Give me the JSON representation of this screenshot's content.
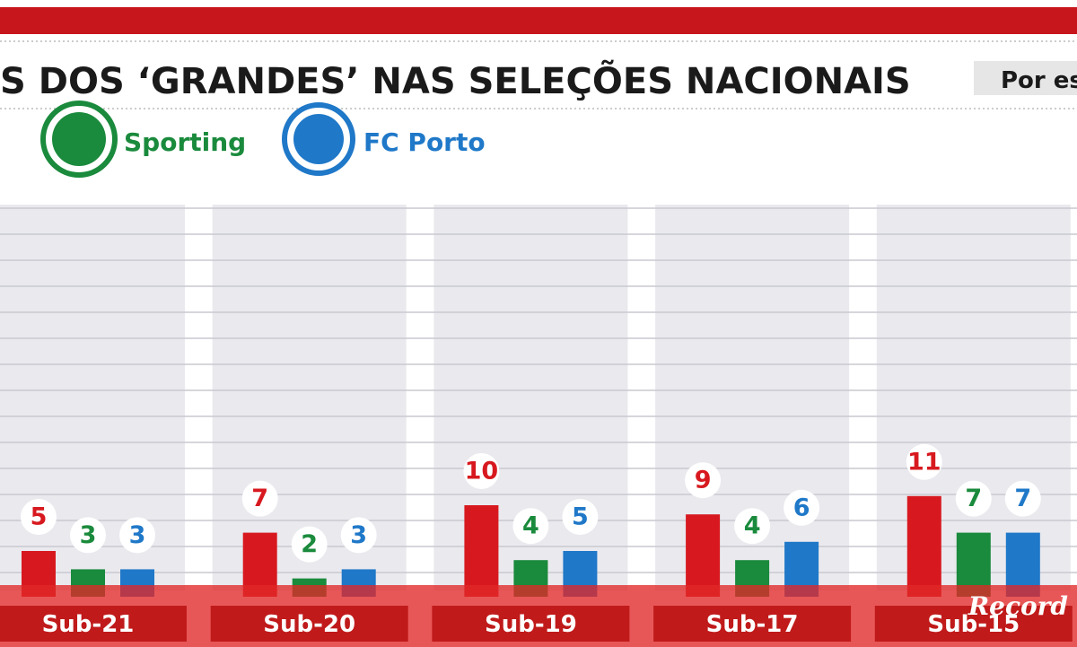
{
  "chart_data": {
    "type": "bar",
    "title": "S DOS ‘GRANDES’ NAS SELEÇÕES NACIONAIS",
    "subtitle": "Por es",
    "categories": [
      "Sub-21",
      "Sub-20",
      "Sub-19",
      "Sub-17",
      "Sub-15"
    ],
    "series": [
      {
        "color": "#d7191f",
        "values": [
          5,
          7,
          10,
          9,
          11
        ]
      },
      {
        "name": "Sporting",
        "color": "#1a8a3c",
        "values": [
          3,
          2,
          4,
          4,
          7
        ]
      },
      {
        "name": "FC Porto",
        "color": "#1f78c8",
        "values": [
          3,
          3,
          5,
          6,
          7
        ]
      }
    ],
    "watermark": "Record"
  }
}
